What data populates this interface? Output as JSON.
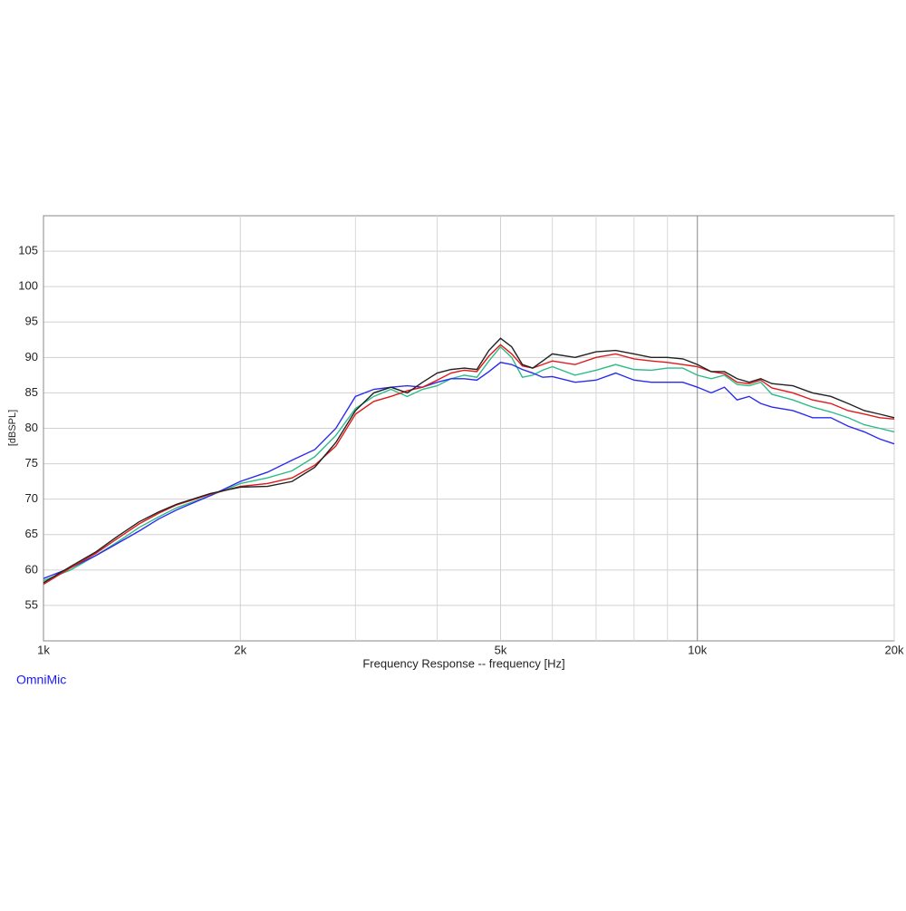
{
  "chart_data": {
    "type": "line",
    "ylabel": "[dBSPL]",
    "xlabel": "Frequency Response -- frequency [Hz]",
    "annotation": "OmniMic",
    "annotation_color": "#1a1aff",
    "xscale": "log",
    "xlim": [
      1000,
      20000
    ],
    "ylim": [
      50,
      110
    ],
    "xticks": [
      {
        "value": 1000,
        "label": "1k"
      },
      {
        "value": 2000,
        "label": "2k"
      },
      {
        "value": 5000,
        "label": "5k"
      },
      {
        "value": 10000,
        "label": "10k"
      },
      {
        "value": 20000,
        "label": "20k"
      }
    ],
    "xminor": [
      3000,
      4000,
      6000,
      7000,
      8000,
      9000
    ],
    "yticks": [
      55,
      60,
      65,
      70,
      75,
      80,
      85,
      90,
      95,
      100,
      105
    ],
    "grid": true,
    "x": [
      1000,
      1100,
      1200,
      1300,
      1400,
      1500,
      1600,
      1800,
      2000,
      2200,
      2400,
      2600,
      2800,
      3000,
      3200,
      3400,
      3600,
      3800,
      4000,
      4200,
      4400,
      4600,
      4800,
      5000,
      5200,
      5400,
      5600,
      5800,
      6000,
      6500,
      7000,
      7500,
      8000,
      8500,
      9000,
      9500,
      10000,
      10500,
      11000,
      11500,
      12000,
      12500,
      13000,
      14000,
      15000,
      16000,
      17000,
      18000,
      19000,
      20000
    ],
    "series": [
      {
        "color": "#2dbb88",
        "values": [
          58.5,
          60,
          62,
          64,
          66,
          67.5,
          68.8,
          70.5,
          72.2,
          73,
          74,
          76,
          79,
          82.8,
          84.5,
          85.5,
          84.5,
          85.5,
          86,
          87,
          87.5,
          87.2,
          89.5,
          91.5,
          90,
          87.2,
          87.5,
          88.2,
          88.7,
          87.5,
          88.2,
          89,
          88.3,
          88.2,
          88.5,
          88.5,
          87.5,
          87,
          87.5,
          86.2,
          86,
          86.5,
          84.8,
          84,
          83,
          82.3,
          81.5,
          80.5,
          80,
          79.5
        ]
      },
      {
        "color": "#2b2bf0",
        "values": [
          58.8,
          60.3,
          62,
          63.8,
          65.5,
          67.2,
          68.5,
          70.5,
          72.5,
          73.8,
          75.5,
          77,
          80,
          84.5,
          85.5,
          85.8,
          86,
          85.8,
          86.5,
          87,
          87,
          86.8,
          88,
          89.3,
          89,
          88.3,
          87.8,
          87.2,
          87.3,
          86.5,
          86.8,
          87.8,
          86.8,
          86.5,
          86.5,
          86.5,
          85.8,
          85,
          85.8,
          84,
          84.5,
          83.5,
          83,
          82.5,
          81.5,
          81.5,
          80.3,
          79.5,
          78.5,
          77.8
        ]
      },
      {
        "color": "#e01a1a",
        "values": [
          58,
          60.3,
          62.3,
          64.5,
          66.5,
          68,
          69.2,
          70.7,
          71.8,
          72.2,
          73,
          74.8,
          77.5,
          82,
          83.8,
          84.5,
          85.3,
          85.8,
          86.8,
          87.8,
          88.2,
          88,
          90.2,
          91.8,
          90.5,
          88.8,
          88.5,
          89,
          89.5,
          89,
          90,
          90.5,
          89.8,
          89.5,
          89.3,
          89,
          88.7,
          88,
          87.7,
          86.5,
          86.3,
          86.8,
          85.7,
          85,
          84,
          83.5,
          82.5,
          82,
          81.5,
          81.3
        ]
      },
      {
        "color": "#222222",
        "values": [
          58.2,
          60.5,
          62.5,
          64.8,
          66.8,
          68.2,
          69.3,
          70.8,
          71.7,
          71.8,
          72.5,
          74.5,
          78,
          82.5,
          85,
          85.8,
          85,
          86.5,
          87.8,
          88.3,
          88.5,
          88.3,
          91,
          92.7,
          91.5,
          89,
          88.5,
          89.5,
          90.5,
          90,
          90.8,
          91,
          90.5,
          90,
          90,
          89.8,
          89,
          88,
          88,
          87,
          86.5,
          87,
          86.3,
          86,
          85,
          84.5,
          83.5,
          82.5,
          82,
          81.5
        ]
      }
    ]
  }
}
